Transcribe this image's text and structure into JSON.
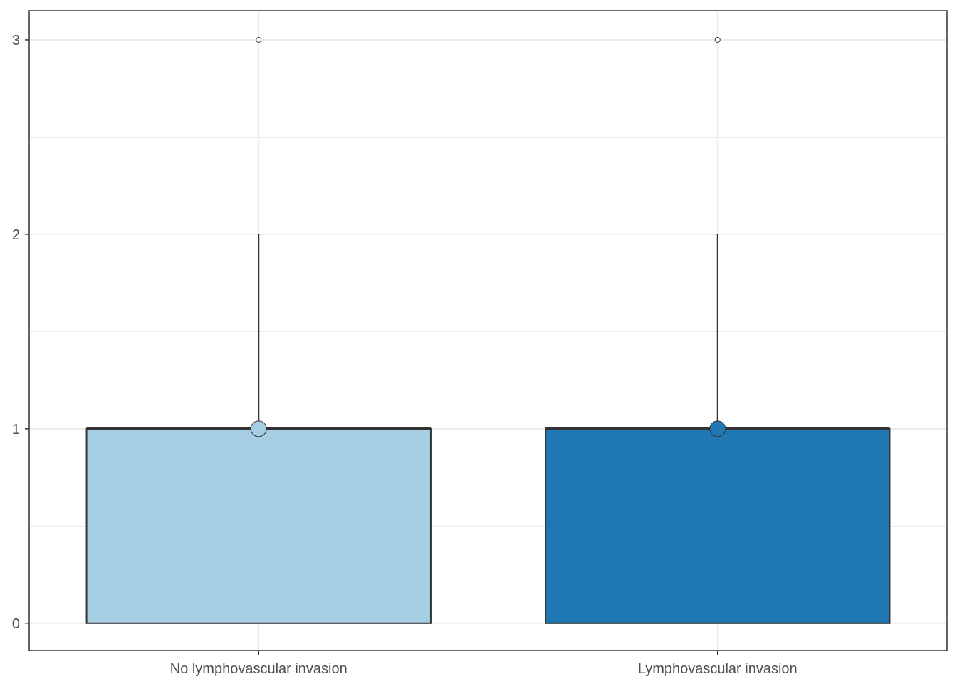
{
  "chart_data": {
    "type": "boxplot",
    "title": "",
    "xlabel": "",
    "ylabel": "",
    "categories": [
      "No lymphovascular invasion",
      "Lymphovascular invasion"
    ],
    "ylim": [
      -0.14,
      3.15
    ],
    "y_ticks": [
      0,
      1,
      2,
      3
    ],
    "y_tick_labels": [
      "0",
      "1",
      "2",
      "3"
    ],
    "grid": true,
    "legend": "none",
    "boxes": [
      {
        "category": "No lymphovascular invasion",
        "min": 0,
        "q1": 0,
        "median": 1,
        "q3": 1,
        "whisker_high": 2,
        "outliers": [
          3
        ],
        "mean": 1,
        "fill": "#a6cee3"
      },
      {
        "category": "Lymphovascular invasion",
        "min": 0,
        "q1": 0,
        "median": 1,
        "q3": 1,
        "whisker_high": 2,
        "outliers": [
          3
        ],
        "mean": 1,
        "fill": "#1f78b4"
      }
    ]
  },
  "colors": {
    "grid": "#ebebeb",
    "outline": "#333333",
    "panel_border": "#333333",
    "axis_text": "#4d4d4d"
  }
}
